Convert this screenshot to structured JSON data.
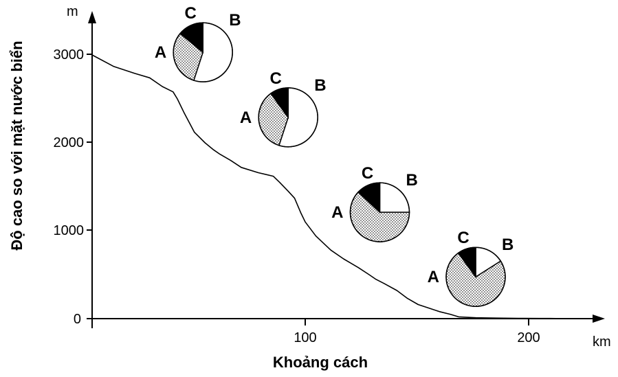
{
  "chart_data": {
    "type": "line",
    "title": "",
    "xlabel": "Khoảng cách",
    "ylabel": "Độ cao so với mặt nước biển",
    "x_unit": "km",
    "y_unit": "m",
    "xlim": [
      0,
      225
    ],
    "ylim": [
      0,
      3350
    ],
    "x_ticks": [
      "100",
      "200"
    ],
    "y_ticks": [
      "0",
      "1000",
      "2000",
      "3000"
    ],
    "grid": false,
    "legend": "none",
    "series": [
      {
        "x": [
          0,
          10,
          20,
          27,
          33,
          38,
          40,
          43,
          48,
          53,
          57,
          60,
          65,
          70,
          78,
          85,
          88,
          92,
          95,
          98,
          100,
          105,
          112,
          118,
          125,
          130,
          133,
          137,
          143,
          148,
          153,
          158,
          163,
          168,
          172,
          180,
          190,
          200,
          210,
          215,
          220
        ],
        "values": [
          3000,
          2870,
          2790,
          2740,
          2640,
          2580,
          2500,
          2350,
          2120,
          2000,
          1920,
          1870,
          1800,
          1720,
          1660,
          1620,
          1550,
          1450,
          1370,
          1200,
          1100,
          940,
          780,
          680,
          580,
          500,
          450,
          400,
          320,
          230,
          160,
          120,
          80,
          50,
          20,
          10,
          6,
          4,
          2,
          2,
          1
        ]
      }
    ],
    "pies": [
      {
        "x": 52,
        "y": 3030,
        "labels": [
          "A",
          "B",
          "C"
        ],
        "values": [
          31,
          55,
          14
        ]
      },
      {
        "x": 92,
        "y": 2290,
        "labels": [
          "A",
          "B",
          "C"
        ],
        "values": [
          35,
          55,
          10
        ]
      },
      {
        "x": 135,
        "y": 1210,
        "labels": [
          "A",
          "B",
          "C"
        ],
        "values": [
          62,
          25,
          13
        ]
      },
      {
        "x": 180,
        "y": 475,
        "labels": [
          "A",
          "B",
          "C"
        ],
        "values": [
          74,
          16,
          10
        ]
      }
    ]
  }
}
